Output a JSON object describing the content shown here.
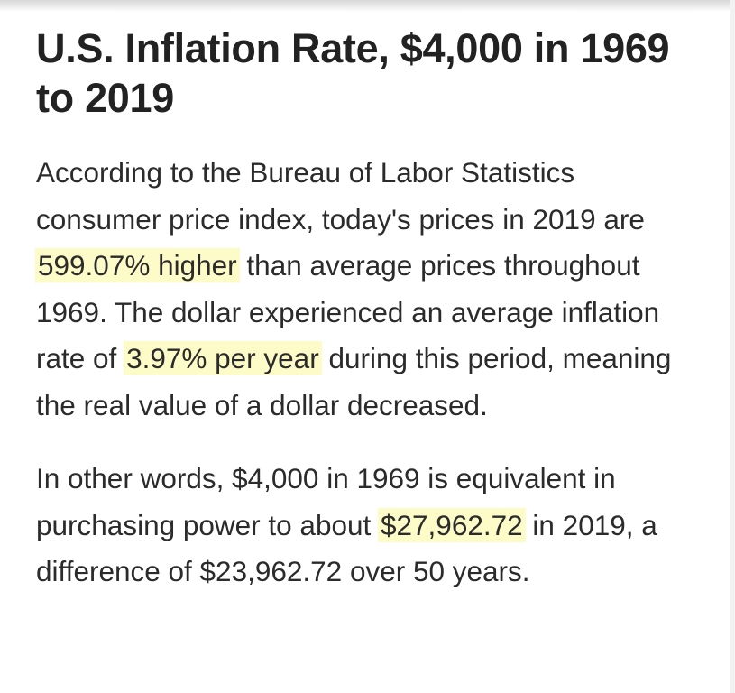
{
  "article": {
    "title": "U.S. Inflation Rate, $4,000 in 1969 to 2019",
    "paragraph1": {
      "t1": "According to the Bureau of Labor Statistics consumer price index, today's prices in 2019 are ",
      "h1": "599.07% higher",
      "t2": " than average prices throughout 1969. The dollar experienced an average inflation rate of ",
      "h2": "3.97% per year",
      "t3": " during this period, meaning the real value of a dollar decreased."
    },
    "paragraph2": {
      "t1": "In other words, $4,000 in 1969 is equivalent in purchasing power to about ",
      "h1": "$27,962.72",
      "t2": " in 2019, a difference of $23,962.72 over 50 years."
    }
  },
  "colors": {
    "highlight": "#fdfbc8",
    "text": "#2b2b2b",
    "title": "#222222"
  }
}
